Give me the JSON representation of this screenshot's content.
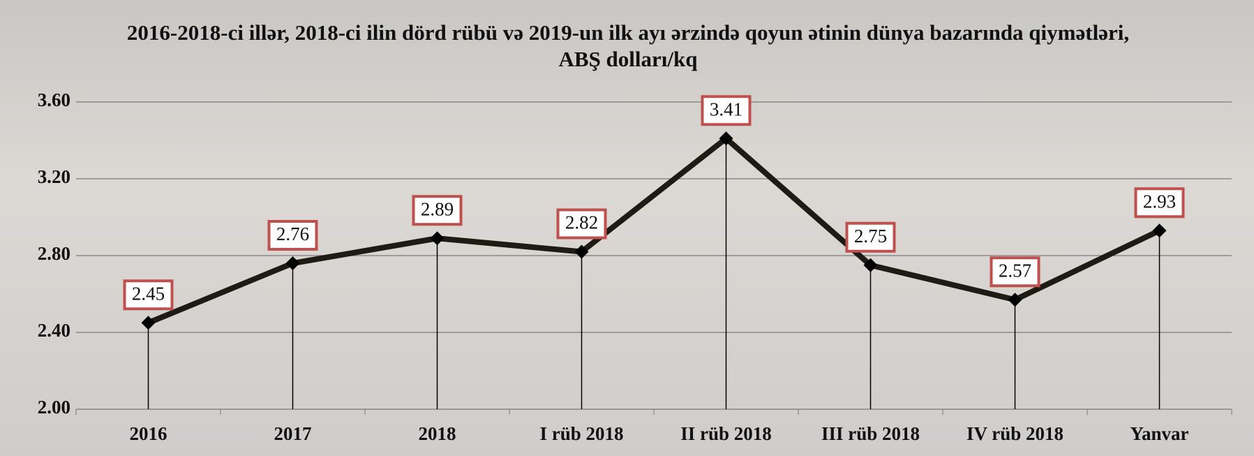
{
  "chart_data": {
    "type": "line",
    "title": "2016-2018-ci illər, 2018-ci ilin dörd rübü və 2019-un ilk ayı ərzində qoyun ətinin dünya bazarında qiymətləri, ABŞ dolları/kq",
    "categories": [
      "2016",
      "2017",
      "2018",
      "I rüb 2018",
      "II rüb 2018",
      "III rüb 2018",
      "IV rüb 2018",
      "Yanvar"
    ],
    "values": [
      2.45,
      2.76,
      2.89,
      2.82,
      3.41,
      2.75,
      2.57,
      2.93
    ],
    "color": "#1e1b14",
    "ylim": [
      2.0,
      3.6
    ],
    "yticks": [
      {
        "value": 2.0,
        "label": "2.00"
      },
      {
        "value": 2.4,
        "label": "2.40"
      },
      {
        "value": 2.8,
        "label": "2.80"
      },
      {
        "value": 3.2,
        "label": "3.20"
      },
      {
        "value": 3.6,
        "label": "3.60"
      }
    ],
    "grid": true
  }
}
